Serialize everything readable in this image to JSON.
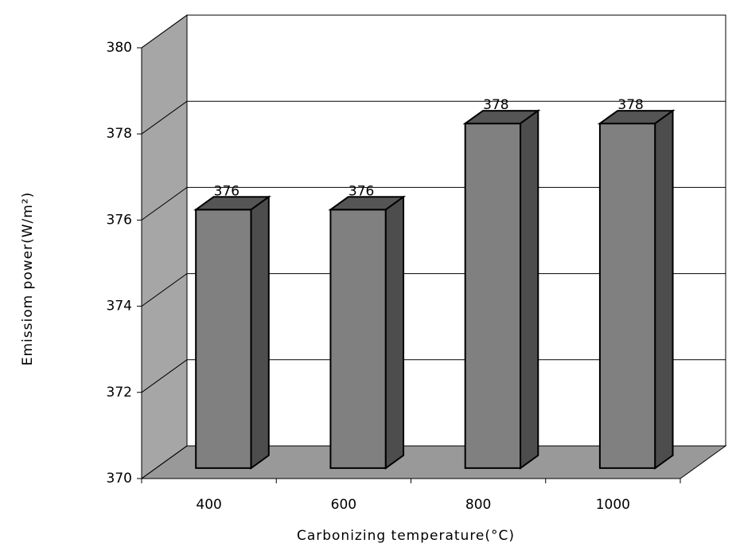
{
  "chart_data": {
    "type": "bar3d",
    "x_label": "Carbonizing temperature(°C)",
    "y_label": "Emissiom power(W/m²)",
    "categories": [
      "400",
      "600",
      "800",
      "1000"
    ],
    "values": [
      376,
      376,
      378,
      378
    ],
    "color": "#808080",
    "ylim": [
      370,
      380
    ],
    "yticks": [
      370,
      372,
      374,
      376,
      378,
      380
    ],
    "grid": true
  }
}
